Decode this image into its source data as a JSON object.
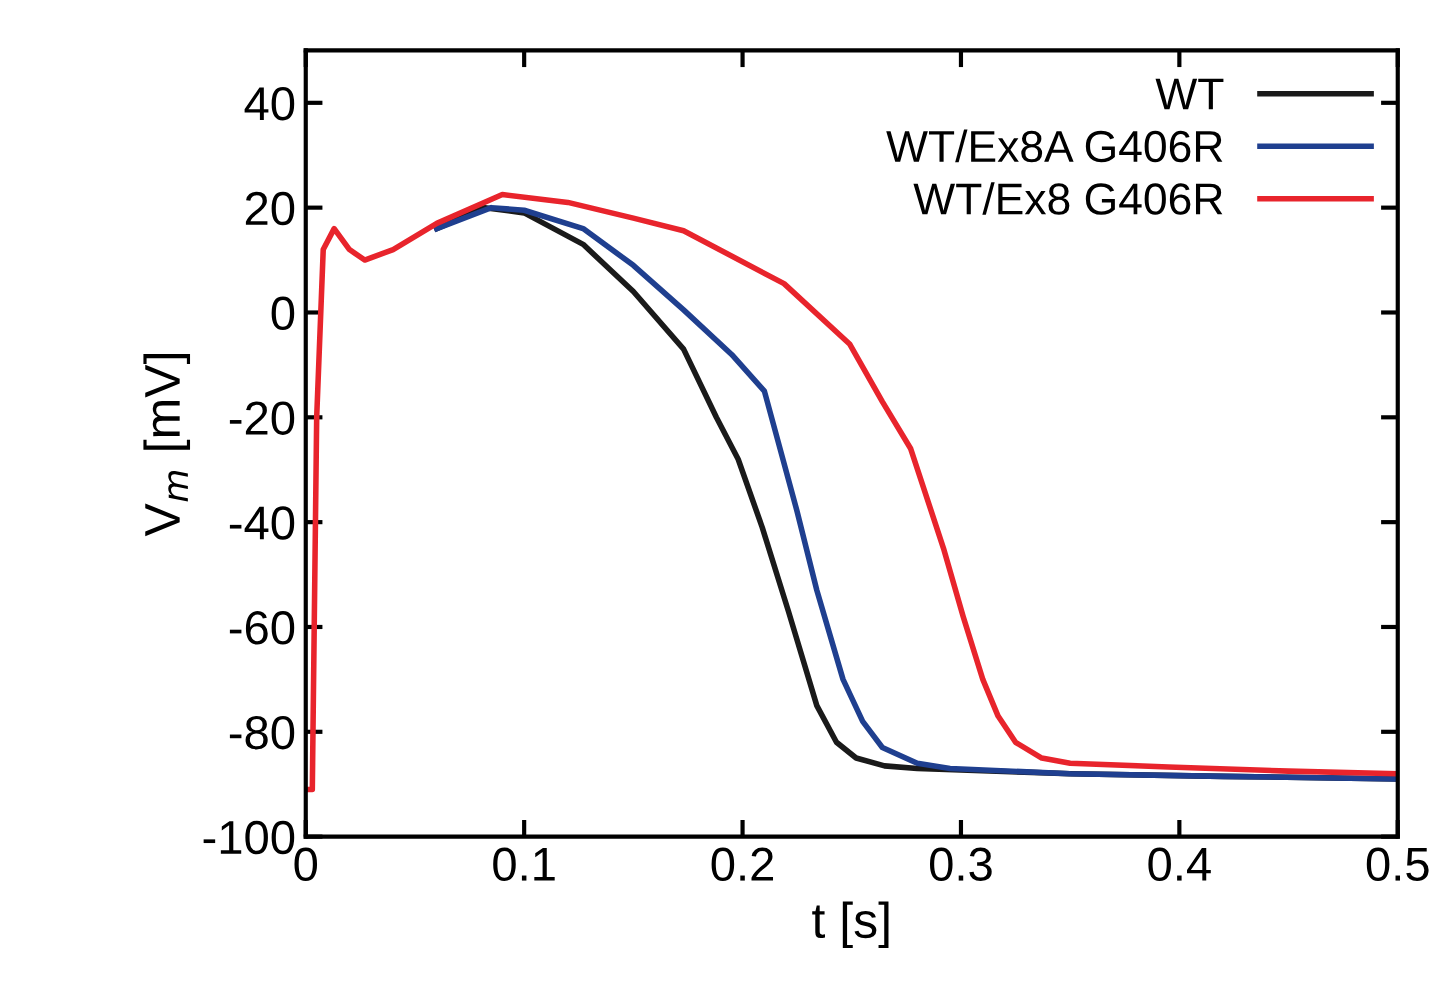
{
  "chart_data": {
    "type": "line",
    "xlabel": "t [s]",
    "ylabel": "V$_{m}$ [mV]",
    "xlim": [
      0,
      0.5
    ],
    "ylim": [
      -100,
      50
    ],
    "xticks": [
      0,
      0.1,
      0.2,
      0.3,
      0.4,
      0.5
    ],
    "yticks": [
      -100,
      -80,
      -60,
      -40,
      -20,
      0,
      20,
      40
    ],
    "grid": false,
    "legend": "top right",
    "line_style": "solid",
    "marker": "none",
    "series": [
      {
        "name": "WT",
        "color": "#1a1a1a",
        "x": [
          0.06,
          0.082,
          0.1,
          0.127,
          0.15,
          0.173,
          0.188,
          0.198,
          0.209,
          0.221,
          0.234,
          0.243,
          0.252,
          0.265,
          0.28,
          0.35,
          0.42,
          0.5
        ],
        "values": [
          16,
          20,
          19,
          13,
          4,
          -7,
          -20,
          -28,
          -41,
          -57,
          -75,
          -82,
          -85,
          -86.5,
          -87,
          -88,
          -88.5,
          -89
        ]
      },
      {
        "name": "WT/Ex8A G406R",
        "color": "#1f3f8f",
        "x": [
          0.06,
          0.085,
          0.1,
          0.127,
          0.15,
          0.173,
          0.195,
          0.21,
          0.225,
          0.234,
          0.246,
          0.255,
          0.264,
          0.28,
          0.295,
          0.35,
          0.42,
          0.5
        ],
        "values": [
          16,
          20,
          19.5,
          16,
          9,
          0.5,
          -8,
          -15,
          -38,
          -53,
          -70,
          -78,
          -83,
          -86,
          -87,
          -88,
          -88.5,
          -89
        ]
      },
      {
        "name": "WT/Ex8 G406R",
        "color": "#e8242c",
        "x": [
          0,
          0.003,
          0.005,
          0.008,
          0.013,
          0.02,
          0.027,
          0.04,
          0.06,
          0.09,
          0.12,
          0.15,
          0.173,
          0.219,
          0.249,
          0.264,
          0.277,
          0.292,
          0.301,
          0.31,
          0.317,
          0.325,
          0.337,
          0.35,
          0.395,
          0.45,
          0.5
        ],
        "values": [
          -91,
          -91,
          -20,
          12,
          16,
          12,
          10,
          12,
          17,
          22.5,
          21,
          18,
          15.6,
          5.5,
          -6,
          -17,
          -26,
          -45,
          -58,
          -70,
          -77,
          -82,
          -85,
          -86,
          -86.7,
          -87.5,
          -88
        ]
      }
    ]
  }
}
